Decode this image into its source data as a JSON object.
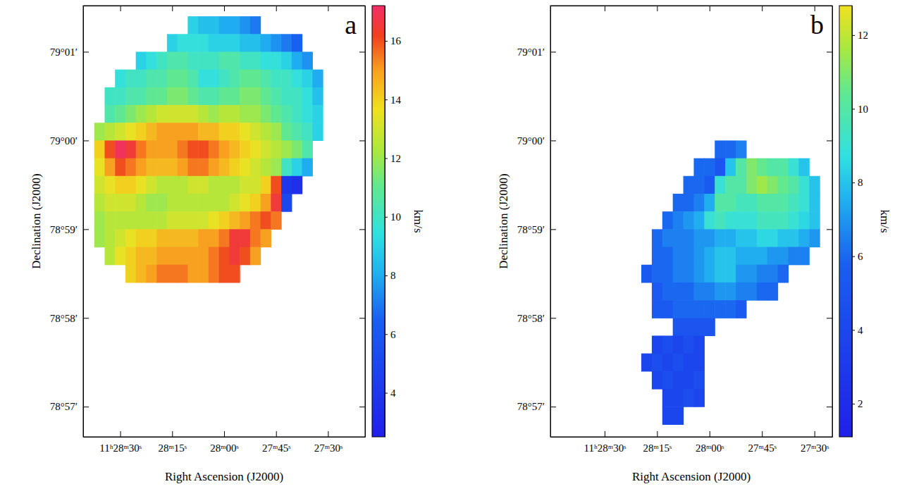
{
  "chart_data": [
    {
      "type": "heatmap",
      "panel_label": "a",
      "x_label": "Right Ascension (J2000)",
      "y_label": "Declination (J2000)",
      "colorbar_label": "km/s",
      "xlim": [
        1720.7,
        1639.3
      ],
      "ylim": [
        56.66,
        61.52
      ],
      "xticks": [
        {
          "value": 1710,
          "label": "11ʰ28ᵐ30ˢ"
        },
        {
          "value": 1695,
          "label": "28ᵐ15ˢ"
        },
        {
          "value": 1680,
          "label": "28ᵐ00ˢ"
        },
        {
          "value": 1665,
          "label": "27ᵐ45ˢ"
        },
        {
          "value": 1650,
          "label": "27ᵐ30ˢ"
        }
      ],
      "yticks": [
        {
          "value": 61,
          "label": "79°01′"
        },
        {
          "value": 60,
          "label": "79°00′"
        },
        {
          "value": 59,
          "label": "78°59′"
        },
        {
          "value": 58,
          "label": "78°58′"
        },
        {
          "value": 57,
          "label": "78°57′"
        }
      ],
      "x": [
        1716,
        1713,
        1710,
        1707,
        1704,
        1701,
        1698,
        1695,
        1692,
        1689,
        1686,
        1683,
        1680,
        1677,
        1674,
        1671,
        1668,
        1665,
        1662,
        1659,
        1656,
        1653
      ],
      "y": [
        61.3,
        61.1,
        60.9,
        60.7,
        60.5,
        60.3,
        60.1,
        59.9,
        59.7,
        59.5,
        59.3,
        59.1,
        58.9,
        58.7,
        58.5
      ],
      "values": [
        [
          null,
          null,
          null,
          null,
          null,
          null,
          null,
          null,
          null,
          9,
          8.5,
          8.5,
          8,
          8,
          7.5,
          7,
          null,
          null,
          null,
          null,
          null,
          null
        ],
        [
          null,
          null,
          null,
          null,
          null,
          null,
          null,
          9,
          9.5,
          9.5,
          9.5,
          9,
          9,
          9,
          8.5,
          8.5,
          8,
          7.5,
          7,
          6.5,
          null,
          null
        ],
        [
          null,
          null,
          null,
          null,
          9,
          9.5,
          10,
          10.5,
          10.5,
          10,
          10,
          10,
          10.5,
          10.5,
          10,
          10,
          9.5,
          9.5,
          9,
          8,
          7.5,
          null
        ],
        [
          null,
          null,
          9.5,
          10,
          10,
          10.5,
          10.5,
          11,
          11,
          10.5,
          9.5,
          9.5,
          10,
          10.5,
          11,
          11,
          10.5,
          10,
          10,
          9.5,
          9,
          8
        ],
        [
          null,
          10,
          10,
          10.5,
          10.5,
          11,
          11,
          11.5,
          11.5,
          11,
          10.5,
          10.5,
          11,
          11,
          11.5,
          11.5,
          11,
          10.5,
          10,
          10,
          9.5,
          8.5
        ],
        [
          null,
          10.5,
          11,
          11.5,
          12,
          12.5,
          13,
          13,
          13,
          13,
          12.5,
          12,
          12.5,
          12.5,
          12,
          12,
          11.5,
          11,
          10.5,
          10,
          9.5,
          9
        ],
        [
          12,
          12.5,
          13,
          13.5,
          14,
          14.5,
          15,
          15,
          15,
          15,
          14.5,
          14.5,
          14,
          14,
          13.5,
          13,
          12.5,
          12,
          11,
          10.5,
          10,
          9
        ],
        [
          14,
          16,
          17,
          16.5,
          15.5,
          15,
          15,
          15,
          15.5,
          16,
          16,
          15.5,
          15,
          14.5,
          14,
          13.5,
          13,
          12.5,
          12,
          11.5,
          10.5,
          null
        ],
        [
          13.5,
          15,
          16,
          15.5,
          15,
          14.5,
          14.5,
          14.5,
          15,
          15.5,
          15.5,
          15,
          14.5,
          14,
          13.5,
          13,
          12.5,
          12,
          10,
          9,
          8,
          null
        ],
        [
          13,
          13.5,
          14,
          14,
          13.5,
          13,
          12.5,
          12.5,
          12.5,
          13,
          13,
          12.5,
          12.5,
          12.5,
          13,
          13,
          14,
          16,
          4,
          3.5,
          null,
          null
        ],
        [
          12.5,
          13,
          13,
          13,
          12.5,
          12,
          12,
          12.5,
          12.5,
          12.5,
          12.5,
          12.5,
          12.5,
          13,
          13.5,
          14,
          15,
          16.5,
          5,
          null,
          null,
          null
        ],
        [
          12,
          12.5,
          12.5,
          12.5,
          12.5,
          12.5,
          12.5,
          13,
          13,
          13,
          13,
          13.5,
          14,
          14.5,
          15,
          15.5,
          16,
          15.5,
          null,
          null,
          null,
          null
        ],
        [
          12,
          12.5,
          13,
          13.5,
          14,
          14,
          14.5,
          14.5,
          14.5,
          14.5,
          15,
          15,
          15.5,
          16.5,
          16.5,
          15.5,
          15,
          null,
          null,
          null,
          null,
          null
        ],
        [
          null,
          12.5,
          13.5,
          14,
          14.5,
          14.5,
          15,
          15,
          15,
          15,
          15,
          15.5,
          16,
          16.5,
          16,
          15,
          null,
          null,
          null,
          null,
          null,
          null
        ],
        [
          null,
          null,
          null,
          14,
          14.5,
          15,
          15.5,
          15.5,
          15.5,
          15,
          15,
          15.5,
          16,
          16,
          null,
          null,
          null,
          null,
          null,
          null,
          null,
          null
        ]
      ],
      "colorbar_range": [
        2.5,
        17.2
      ],
      "colorbar_ticks": [
        4,
        6,
        8,
        10,
        12,
        14,
        16
      ]
    },
    {
      "type": "heatmap",
      "panel_label": "b",
      "x_label": "Right Ascension (J2000)",
      "y_label": "Declination (J2000)",
      "colorbar_label": "km/s",
      "xlim": [
        1725.5,
        1644.9
      ],
      "ylim": [
        56.66,
        61.52
      ],
      "xticks": [
        {
          "value": 1710,
          "label": "11ʰ28ᵐ30ˢ"
        },
        {
          "value": 1695,
          "label": "28ᵐ15ˢ"
        },
        {
          "value": 1680,
          "label": "28ᵐ00ˢ"
        },
        {
          "value": 1665,
          "label": "27ᵐ45ˢ"
        },
        {
          "value": 1650,
          "label": "27ᵐ30ˢ"
        }
      ],
      "yticks": [
        {
          "value": 61,
          "label": "79°01′"
        },
        {
          "value": 60,
          "label": "79°00′"
        },
        {
          "value": 59,
          "label": "78°59′"
        },
        {
          "value": 58,
          "label": "78°58′"
        },
        {
          "value": 57,
          "label": "78°57′"
        }
      ],
      "x": [
        1698,
        1695,
        1692,
        1689,
        1686,
        1683,
        1680,
        1677,
        1674,
        1671,
        1668,
        1665,
        1662,
        1659,
        1656,
        1653,
        1650
      ],
      "y": [
        59.9,
        59.7,
        59.5,
        59.3,
        59.1,
        58.9,
        58.7,
        58.5,
        58.3,
        58.1,
        57.9,
        57.7,
        57.5,
        57.3,
        57.1,
        56.9
      ],
      "values": [
        [
          null,
          null,
          null,
          null,
          null,
          null,
          null,
          6,
          6,
          6.5,
          null,
          null,
          null,
          null,
          null,
          null,
          null
        ],
        [
          null,
          null,
          null,
          null,
          null,
          6,
          6,
          5,
          8,
          10,
          11,
          10.5,
          10,
          10,
          9,
          8,
          null
        ],
        [
          null,
          null,
          null,
          null,
          6,
          6,
          5.5,
          9,
          10,
          10,
          11,
          11.5,
          11,
          10.5,
          10,
          9,
          8
        ],
        [
          null,
          null,
          null,
          6,
          6,
          6.5,
          7.5,
          10,
          10,
          9.5,
          9.5,
          10,
          10,
          10,
          9.5,
          9,
          8
        ],
        [
          null,
          null,
          6,
          6.5,
          7,
          7.5,
          9,
          9.5,
          9,
          9,
          9,
          9.5,
          9.5,
          9.5,
          9,
          8.5,
          8
        ],
        [
          null,
          6,
          6.5,
          6.5,
          6.5,
          7,
          7,
          7.5,
          7.5,
          8,
          8,
          8.5,
          8.5,
          8,
          8,
          7.5,
          7
        ],
        [
          null,
          6,
          6,
          6.5,
          6.5,
          7,
          7.5,
          8,
          8,
          7.5,
          7.5,
          7.5,
          7,
          7,
          6.5,
          6.5,
          null
        ],
        [
          5.5,
          6,
          6,
          6.5,
          6.5,
          7,
          7.5,
          8,
          8,
          7,
          7,
          6.5,
          6.5,
          6,
          null,
          null,
          null
        ],
        [
          null,
          5.5,
          6,
          6,
          6,
          6.5,
          6.5,
          7,
          7,
          6.5,
          6.5,
          6,
          6,
          null,
          null,
          null,
          null
        ],
        [
          null,
          5.5,
          5.5,
          6,
          6,
          6,
          6,
          6,
          6,
          5.5,
          null,
          null,
          null,
          null,
          null,
          null,
          null
        ],
        [
          null,
          null,
          null,
          5,
          5,
          5,
          5,
          null,
          null,
          null,
          null,
          null,
          null,
          null,
          null,
          null,
          null
        ],
        [
          null,
          4,
          4.5,
          4,
          4.5,
          4,
          null,
          null,
          null,
          null,
          null,
          null,
          null,
          null,
          null,
          null,
          null
        ],
        [
          4,
          4.5,
          4,
          4.5,
          4,
          4,
          null,
          null,
          null,
          null,
          null,
          null,
          null,
          null,
          null,
          null,
          null
        ],
        [
          null,
          4,
          4.5,
          4,
          4,
          4.5,
          null,
          null,
          null,
          null,
          null,
          null,
          null,
          null,
          null,
          null,
          null
        ],
        [
          null,
          null,
          4,
          4,
          4.5,
          4,
          null,
          null,
          null,
          null,
          null,
          null,
          null,
          null,
          null,
          null,
          null
        ],
        [
          null,
          null,
          4,
          4,
          null,
          null,
          null,
          null,
          null,
          null,
          null,
          null,
          null,
          null,
          null,
          null,
          null
        ]
      ],
      "colorbar_range": [
        1.1,
        12.8
      ],
      "colorbar_ticks": [
        2,
        4,
        6,
        8,
        10,
        12
      ]
    }
  ]
}
